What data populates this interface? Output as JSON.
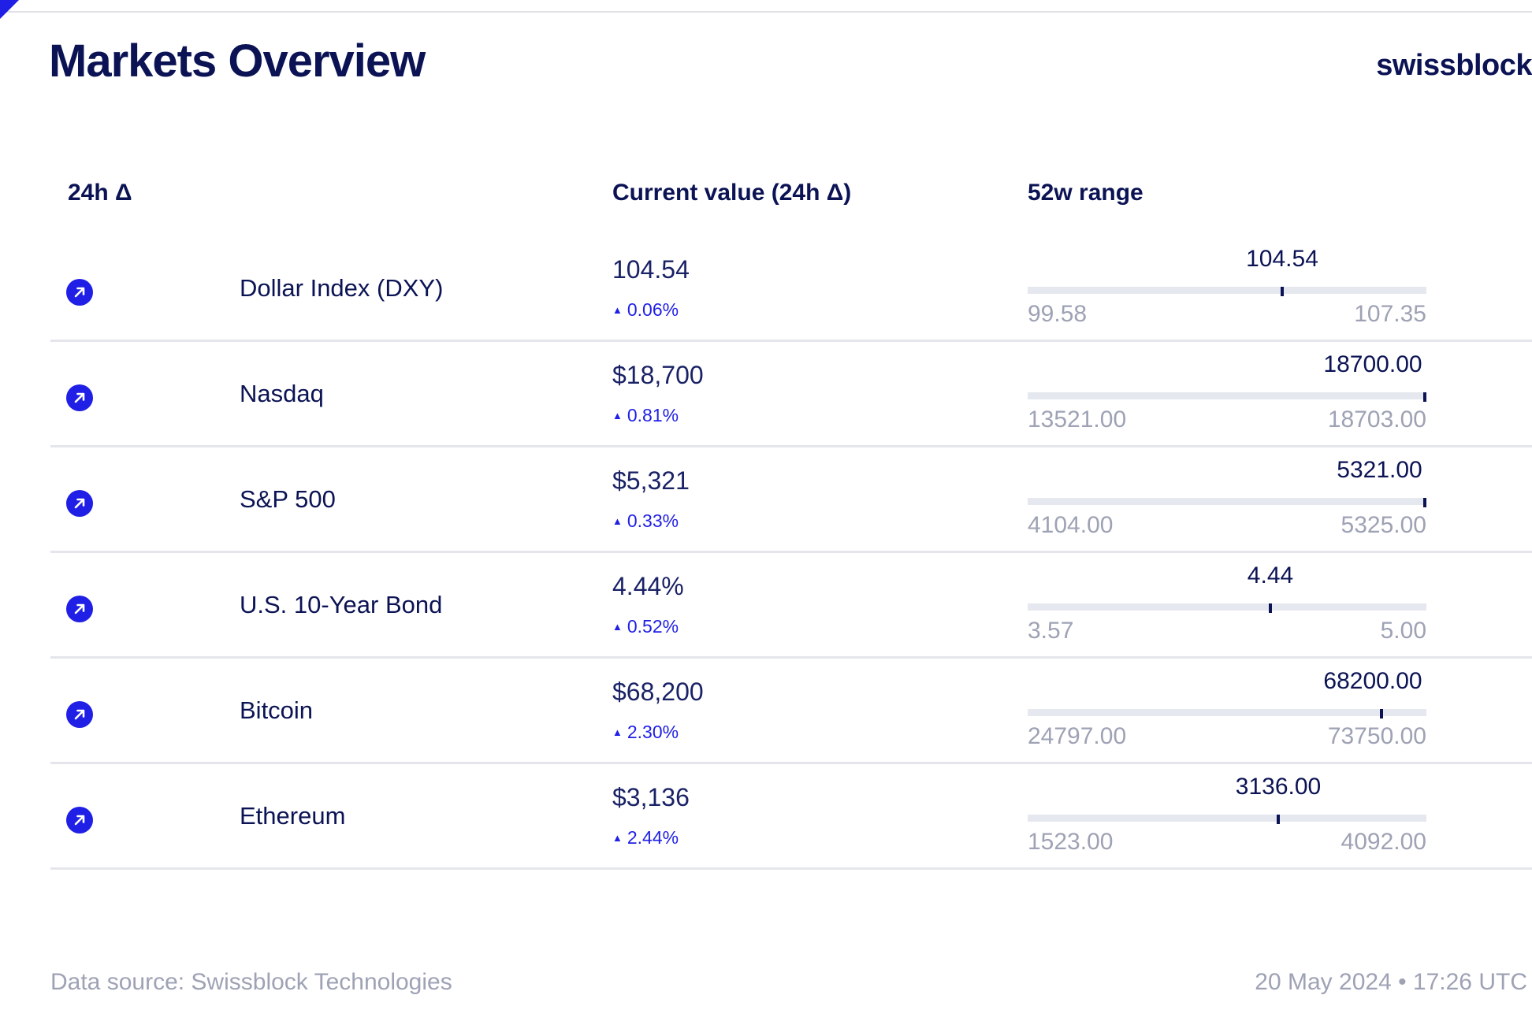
{
  "header": {
    "title": "Markets Overview",
    "brand": "swissblock"
  },
  "columns": {
    "delta": "24h Δ",
    "current": "Current value (24h Δ)",
    "range": "52w range"
  },
  "icons": {
    "row_icon": "arrow-up-right-icon"
  },
  "colors": {
    "accent": "#1f1fe6",
    "text": "#0b1354",
    "muted": "#9ea2b4",
    "bar": "#e6e8ef"
  },
  "chart_data": {
    "type": "table",
    "rows": [
      {
        "name": "Dollar Index (DXY)",
        "value": "104.54",
        "change": "0.06%",
        "marker": 104.54,
        "marker_label": "104.54",
        "min": 99.58,
        "min_label": "99.58",
        "max": 107.35,
        "max_label": "107.35"
      },
      {
        "name": "Nasdaq",
        "value": "$18,700",
        "change": "0.81%",
        "marker": 18700.0,
        "marker_label": "18700.00",
        "min": 13521.0,
        "min_label": "13521.00",
        "max": 18703.0,
        "max_label": "18703.00"
      },
      {
        "name": "S&P 500",
        "value": "$5,321",
        "change": "0.33%",
        "marker": 5321.0,
        "marker_label": "5321.00",
        "min": 4104.0,
        "min_label": "4104.00",
        "max": 5325.0,
        "max_label": "5325.00"
      },
      {
        "name": "U.S. 10-Year Bond",
        "value": "4.44%",
        "change": "0.52%",
        "marker": 4.44,
        "marker_label": "4.44",
        "min": 3.57,
        "min_label": "3.57",
        "max": 5.0,
        "max_label": "5.00"
      },
      {
        "name": "Bitcoin",
        "value": "$68,200",
        "change": "2.30%",
        "marker": 68200.0,
        "marker_label": "68200.00",
        "min": 24797.0,
        "min_label": "24797.00",
        "max": 73750.0,
        "max_label": "73750.00"
      },
      {
        "name": "Ethereum",
        "value": "$3,136",
        "change": "2.44%",
        "marker": 3136.0,
        "marker_label": "3136.00",
        "min": 1523.0,
        "min_label": "1523.00",
        "max": 4092.0,
        "max_label": "4092.00"
      }
    ]
  },
  "footer": {
    "source": "Data source: Swissblock Technologies",
    "date": "20 May 2024 • 17:26 UTC"
  }
}
